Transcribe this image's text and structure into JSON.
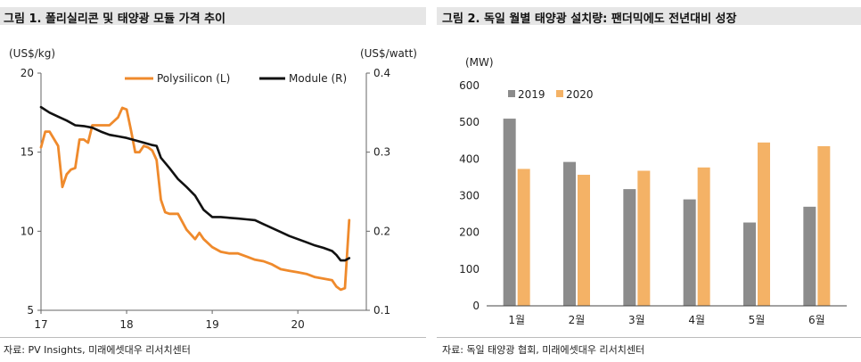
{
  "figures": {
    "left": {
      "title": "그림 1. 폴리실리콘 및 태양광 모듈 가격 추이",
      "source": "자료: PV Insights, 미래에셋대우 리서치센터"
    },
    "right": {
      "title": "그림 2. 독일 월별 태양광 설치량: 팬더믹에도 전년대비 성장",
      "source": "자료: 독일 태양광 협회, 미래에셋대우 리서치센터"
    }
  },
  "chart_data": [
    {
      "type": "line",
      "y_left_unit": "(US$/kg)",
      "y_right_unit": "(US$/watt)",
      "xlim": [
        17,
        20.8
      ],
      "x_ticks": [
        "17",
        "18",
        "19",
        "20"
      ],
      "ylim_left": [
        5,
        20
      ],
      "y_left_ticks": [
        "5",
        "10",
        "15",
        "20"
      ],
      "ylim_right": [
        0.1,
        0.4
      ],
      "y_right_ticks": [
        "0.1",
        "0.2",
        "0.3",
        "0.4"
      ],
      "legend_position": "top",
      "colors": {
        "polysilicon": "#ef8a2c",
        "module": "#111111"
      },
      "series": [
        {
          "name": "Polysilicon (L)",
          "axis": "left",
          "x": [
            17.0,
            17.05,
            17.1,
            17.2,
            17.25,
            17.3,
            17.35,
            17.4,
            17.45,
            17.5,
            17.55,
            17.6,
            17.7,
            17.8,
            17.9,
            17.95,
            18.0,
            18.05,
            18.1,
            18.15,
            18.2,
            18.25,
            18.3,
            18.35,
            18.4,
            18.45,
            18.5,
            18.6,
            18.7,
            18.8,
            18.85,
            18.9,
            19.0,
            19.1,
            19.2,
            19.3,
            19.4,
            19.5,
            19.6,
            19.7,
            19.8,
            19.9,
            20.0,
            20.1,
            20.2,
            20.3,
            20.4,
            20.45,
            20.5,
            20.55,
            20.6
          ],
          "values": [
            15.3,
            16.3,
            16.3,
            15.4,
            12.8,
            13.6,
            13.9,
            14.0,
            15.8,
            15.8,
            15.6,
            16.7,
            16.7,
            16.7,
            17.2,
            17.8,
            17.7,
            16.4,
            15.0,
            15.0,
            15.4,
            15.3,
            15.1,
            14.5,
            12.0,
            11.2,
            11.1,
            11.1,
            10.1,
            9.5,
            9.9,
            9.5,
            9.0,
            8.7,
            8.6,
            8.6,
            8.4,
            8.2,
            8.1,
            7.9,
            7.6,
            7.5,
            7.4,
            7.3,
            7.1,
            7.0,
            6.9,
            6.5,
            6.3,
            6.4,
            10.7
          ]
        },
        {
          "name": "Module (R)",
          "axis": "right",
          "x": [
            17.0,
            17.1,
            17.2,
            17.3,
            17.4,
            17.5,
            17.6,
            17.7,
            17.8,
            17.9,
            18.0,
            18.1,
            18.2,
            18.3,
            18.35,
            18.4,
            18.5,
            18.6,
            18.7,
            18.8,
            18.9,
            19.0,
            19.1,
            19.2,
            19.3,
            19.4,
            19.5,
            19.6,
            19.7,
            19.8,
            19.9,
            20.0,
            20.1,
            20.2,
            20.3,
            20.4,
            20.45,
            20.5,
            20.55,
            20.6
          ],
          "values": [
            0.357,
            0.35,
            0.345,
            0.34,
            0.334,
            0.333,
            0.331,
            0.326,
            0.322,
            0.32,
            0.318,
            0.315,
            0.312,
            0.309,
            0.308,
            0.293,
            0.28,
            0.266,
            0.256,
            0.245,
            0.227,
            0.218,
            0.218,
            0.217,
            0.216,
            0.215,
            0.214,
            0.209,
            0.204,
            0.199,
            0.194,
            0.19,
            0.186,
            0.182,
            0.179,
            0.175,
            0.17,
            0.163,
            0.163,
            0.166
          ]
        }
      ]
    },
    {
      "type": "bar",
      "y_unit": "(MW)",
      "ylim": [
        0,
        600
      ],
      "y_ticks": [
        "0",
        "100",
        "200",
        "300",
        "400",
        "500",
        "600"
      ],
      "categories": [
        "1월",
        "2월",
        "3월",
        "4월",
        "5월",
        "6월"
      ],
      "legend_position": "top-left",
      "colors": {
        "2019": "#8c8c8c",
        "2020": "#f4b266"
      },
      "series": [
        {
          "name": "2019",
          "values": [
            510,
            392,
            318,
            290,
            227,
            270
          ]
        },
        {
          "name": "2020",
          "values": [
            373,
            357,
            368,
            377,
            445,
            435
          ]
        }
      ]
    }
  ]
}
